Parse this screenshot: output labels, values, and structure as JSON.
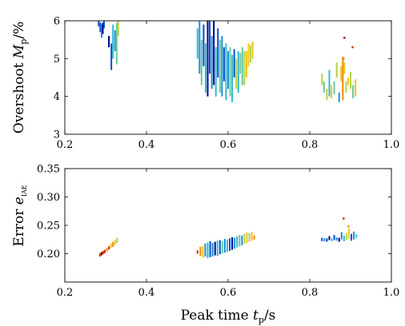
{
  "chart_data": [
    {
      "type": "scatter",
      "xlabel": {
        "main": "Peak time ",
        "var": "t",
        "sub": "p",
        "unit": "/s"
      },
      "ylabel": {
        "main": "Overshoot ",
        "var": "M",
        "sub": "p",
        "unit": "/%"
      },
      "xlim": [
        0.2,
        1.0
      ],
      "ylim": [
        3,
        6
      ],
      "xticks": [
        "0.2",
        "0.4",
        "0.6",
        "0.8",
        "1.0"
      ],
      "yticks": [
        "3",
        "4",
        "5",
        "6"
      ],
      "grid": false,
      "colormap": [
        "#00008f",
        "#0050c8",
        "#1e90d8",
        "#33b8d0",
        "#6cc7a0",
        "#b7cf4a",
        "#f0c419",
        "#f08a00",
        "#d92b00",
        "#8b0000"
      ],
      "clusters": [
        {
          "x": [
            0.283,
            0.287,
            0.29,
            0.293,
            0.296
          ],
          "ylo": [
            5.85,
            5.7,
            5.55,
            5.65,
            5.8
          ],
          "yhi": [
            6.0,
            5.95,
            5.9,
            5.95,
            6.0
          ],
          "c": [
            1,
            1,
            2,
            0,
            1
          ]
        },
        {
          "x": [
            0.308,
            0.314,
            0.318,
            0.323,
            0.327,
            0.331
          ],
          "ylo": [
            5.3,
            4.7,
            5.0,
            5.2,
            4.85,
            5.6
          ],
          "yhi": [
            5.6,
            5.4,
            5.9,
            5.75,
            5.95,
            6.0
          ],
          "c": [
            0,
            1,
            3,
            2,
            4,
            5
          ]
        },
        {
          "x": [
            0.525,
            0.53,
            0.535,
            0.54,
            0.545,
            0.55,
            0.555,
            0.56,
            0.565,
            0.57,
            0.575,
            0.58,
            0.585,
            0.59,
            0.595,
            0.6,
            0.605,
            0.61,
            0.615,
            0.62,
            0.625,
            0.63,
            0.635,
            0.64,
            0.645,
            0.65,
            0.655,
            0.66
          ],
          "ylo": [
            5.0,
            4.6,
            4.3,
            4.8,
            4.1,
            4.0,
            4.6,
            4.2,
            4.3,
            4.0,
            4.5,
            4.1,
            4.0,
            4.4,
            3.9,
            4.2,
            4.0,
            3.85,
            4.5,
            4.2,
            4.1,
            4.6,
            4.3,
            4.3,
            4.5,
            4.8,
            4.9,
            5.0
          ],
          "yhi": [
            5.8,
            6.0,
            5.5,
            5.9,
            5.4,
            6.0,
            6.0,
            5.6,
            6.0,
            5.3,
            5.8,
            5.5,
            5.6,
            5.3,
            5.4,
            5.2,
            5.3,
            5.1,
            5.25,
            5.0,
            5.2,
            5.15,
            5.3,
            5.2,
            5.2,
            5.4,
            5.35,
            5.45
          ],
          "c": [
            3,
            2,
            4,
            1,
            3,
            0,
            1,
            2,
            0,
            3,
            1,
            4,
            2,
            1,
            3,
            2,
            4,
            3,
            1,
            5,
            3,
            4,
            4,
            5,
            6,
            6,
            5,
            6
          ]
        },
        {
          "x": [
            0.83,
            0.835,
            0.842,
            0.848,
            0.853,
            0.86,
            0.866,
            0.872,
            0.877,
            0.881,
            0.885,
            0.889,
            0.894,
            0.9,
            0.906,
            0.912
          ],
          "ylo": [
            4.3,
            4.1,
            3.9,
            4.0,
            3.95,
            4.05,
            4.5,
            3.85,
            4.4,
            3.9,
            4.6,
            4.1,
            4.3,
            4.2,
            3.95,
            4.0
          ],
          "yhi": [
            4.6,
            4.4,
            4.2,
            4.7,
            4.3,
            4.4,
            4.9,
            4.1,
            4.8,
            5.05,
            4.9,
            4.4,
            4.5,
            4.65,
            4.3,
            4.45
          ],
          "c": [
            5,
            4,
            5,
            3,
            6,
            4,
            5,
            2,
            6,
            7,
            6,
            5,
            6,
            5,
            4,
            6
          ]
        }
      ],
      "singles": [
        {
          "x": 0.885,
          "y": 5.55,
          "c": 9
        },
        {
          "x": 0.905,
          "y": 5.3,
          "c": 8
        },
        {
          "x": 0.883,
          "y": 5.0,
          "c": 7
        }
      ]
    },
    {
      "type": "scatter",
      "xlabel": {
        "main": "Peak time ",
        "var": "t",
        "sub": "p",
        "unit": "/s"
      },
      "ylabel": {
        "main": "Error ",
        "var": "e",
        "sub": "IAE",
        "unit": ""
      },
      "xlim": [
        0.2,
        1.0
      ],
      "ylim": [
        0.15,
        0.35
      ],
      "xticks": [
        "0.2",
        "0.4",
        "0.6",
        "0.8",
        "1.0"
      ],
      "yticks": [
        "0.20",
        "0.25",
        "0.30",
        "0.35"
      ],
      "grid": false,
      "clusters": [
        {
          "x": [
            0.286,
            0.29,
            0.294,
            0.298,
            0.303,
            0.308,
            0.313,
            0.318,
            0.323,
            0.328
          ],
          "ylo": [
            0.195,
            0.197,
            0.199,
            0.201,
            0.204,
            0.207,
            0.21,
            0.212,
            0.215,
            0.219
          ],
          "yhi": [
            0.201,
            0.203,
            0.205,
            0.207,
            0.21,
            0.213,
            0.218,
            0.221,
            0.224,
            0.228
          ],
          "c": [
            8,
            9,
            8,
            8,
            7,
            8,
            6,
            7,
            6,
            5
          ]
        },
        {
          "x": [
            0.525,
            0.532,
            0.538,
            0.544,
            0.55,
            0.556,
            0.562,
            0.568,
            0.574,
            0.58,
            0.586,
            0.592,
            0.598,
            0.604,
            0.61,
            0.616,
            0.622,
            0.628,
            0.634,
            0.64,
            0.646,
            0.652,
            0.658,
            0.664
          ],
          "ylo": [
            0.2,
            0.196,
            0.193,
            0.195,
            0.192,
            0.194,
            0.195,
            0.197,
            0.196,
            0.199,
            0.2,
            0.202,
            0.203,
            0.205,
            0.207,
            0.209,
            0.211,
            0.213,
            0.215,
            0.217,
            0.219,
            0.221,
            0.223,
            0.225
          ],
          "yhi": [
            0.206,
            0.212,
            0.214,
            0.218,
            0.22,
            0.222,
            0.219,
            0.221,
            0.223,
            0.224,
            0.222,
            0.226,
            0.225,
            0.227,
            0.229,
            0.228,
            0.231,
            0.233,
            0.232,
            0.235,
            0.237,
            0.236,
            0.238,
            0.232
          ],
          "c": [
            8,
            7,
            6,
            2,
            3,
            1,
            2,
            0,
            3,
            1,
            4,
            2,
            3,
            1,
            0,
            2,
            3,
            4,
            2,
            5,
            6,
            5,
            6,
            7
          ]
        },
        {
          "x": [
            0.83,
            0.836,
            0.842,
            0.848,
            0.854,
            0.86,
            0.866,
            0.872,
            0.878,
            0.884,
            0.89,
            0.896,
            0.902,
            0.908,
            0.914
          ],
          "ylo": [
            0.222,
            0.222,
            0.221,
            0.224,
            0.222,
            0.224,
            0.223,
            0.221,
            0.225,
            0.222,
            0.224,
            0.226,
            0.223,
            0.225,
            0.228
          ],
          "yhi": [
            0.228,
            0.227,
            0.227,
            0.231,
            0.227,
            0.233,
            0.229,
            0.228,
            0.238,
            0.232,
            0.236,
            0.244,
            0.235,
            0.239,
            0.234
          ],
          "c": [
            1,
            2,
            1,
            0,
            3,
            1,
            2,
            0,
            2,
            3,
            5,
            6,
            1,
            2,
            3
          ]
        }
      ],
      "singles": [
        {
          "x": 0.883,
          "y": 0.262,
          "c": 8
        },
        {
          "x": 0.895,
          "y": 0.248,
          "c": 7
        }
      ]
    }
  ]
}
